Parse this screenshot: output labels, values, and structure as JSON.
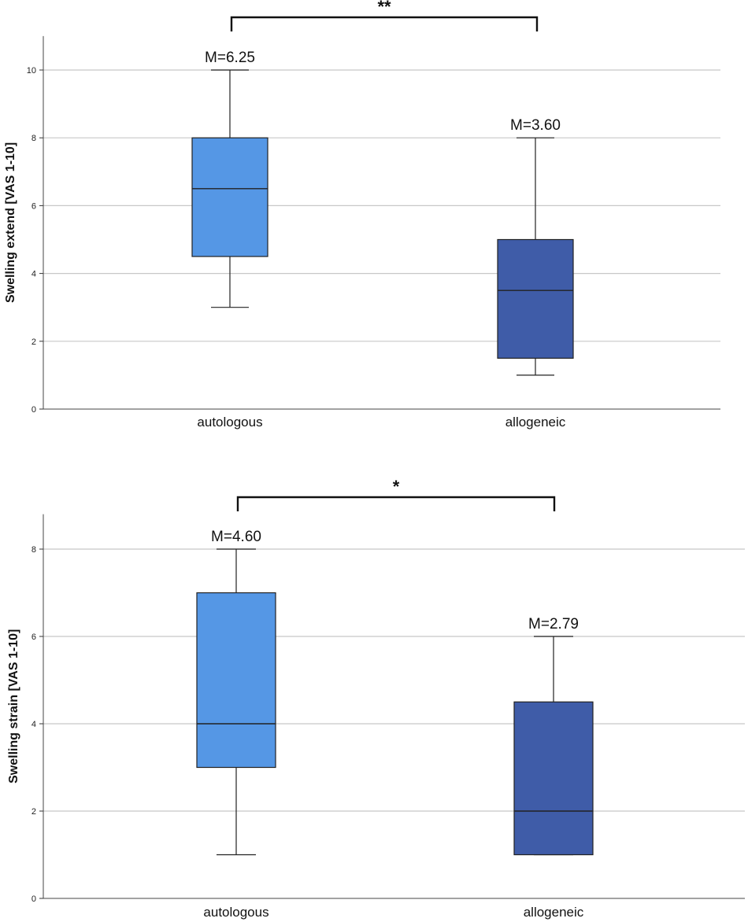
{
  "chart_data": [
    {
      "type": "box",
      "ylabel": "Swelling extend [VAS 1-10]",
      "ylim": [
        0,
        11
      ],
      "yticks": [
        0,
        2,
        4,
        6,
        8,
        10
      ],
      "grid": true,
      "categories": [
        "autologous",
        "allogeneic"
      ],
      "boxes": [
        {
          "category": "autologous",
          "min": 3,
          "q1": 4.5,
          "median": 6.5,
          "q3": 8,
          "max": 10,
          "mean_label": "M=6.25",
          "color": "#5597e5"
        },
        {
          "category": "allogeneic",
          "min": 1,
          "q1": 1.5,
          "median": 3.5,
          "q3": 5,
          "max": 8,
          "mean_label": "M=3.60",
          "color": "#3f5ca8"
        }
      ],
      "significance": "**"
    },
    {
      "type": "box",
      "ylabel": "Swelling strain [VAS 1-10]",
      "ylim": [
        0,
        8.8
      ],
      "yticks": [
        0,
        2,
        4,
        6,
        8
      ],
      "grid": true,
      "categories": [
        "autologous",
        "allogeneic"
      ],
      "boxes": [
        {
          "category": "autologous",
          "min": 1,
          "q1": 3,
          "median": 4,
          "q3": 7,
          "max": 8,
          "mean_label": "M=4.60",
          "color": "#5597e5"
        },
        {
          "category": "allogeneic",
          "min": 1,
          "q1": 1,
          "median": 2,
          "q3": 4.5,
          "max": 6,
          "mean_label": "M=2.79",
          "color": "#3f5ca8"
        }
      ],
      "significance": "*"
    }
  ]
}
